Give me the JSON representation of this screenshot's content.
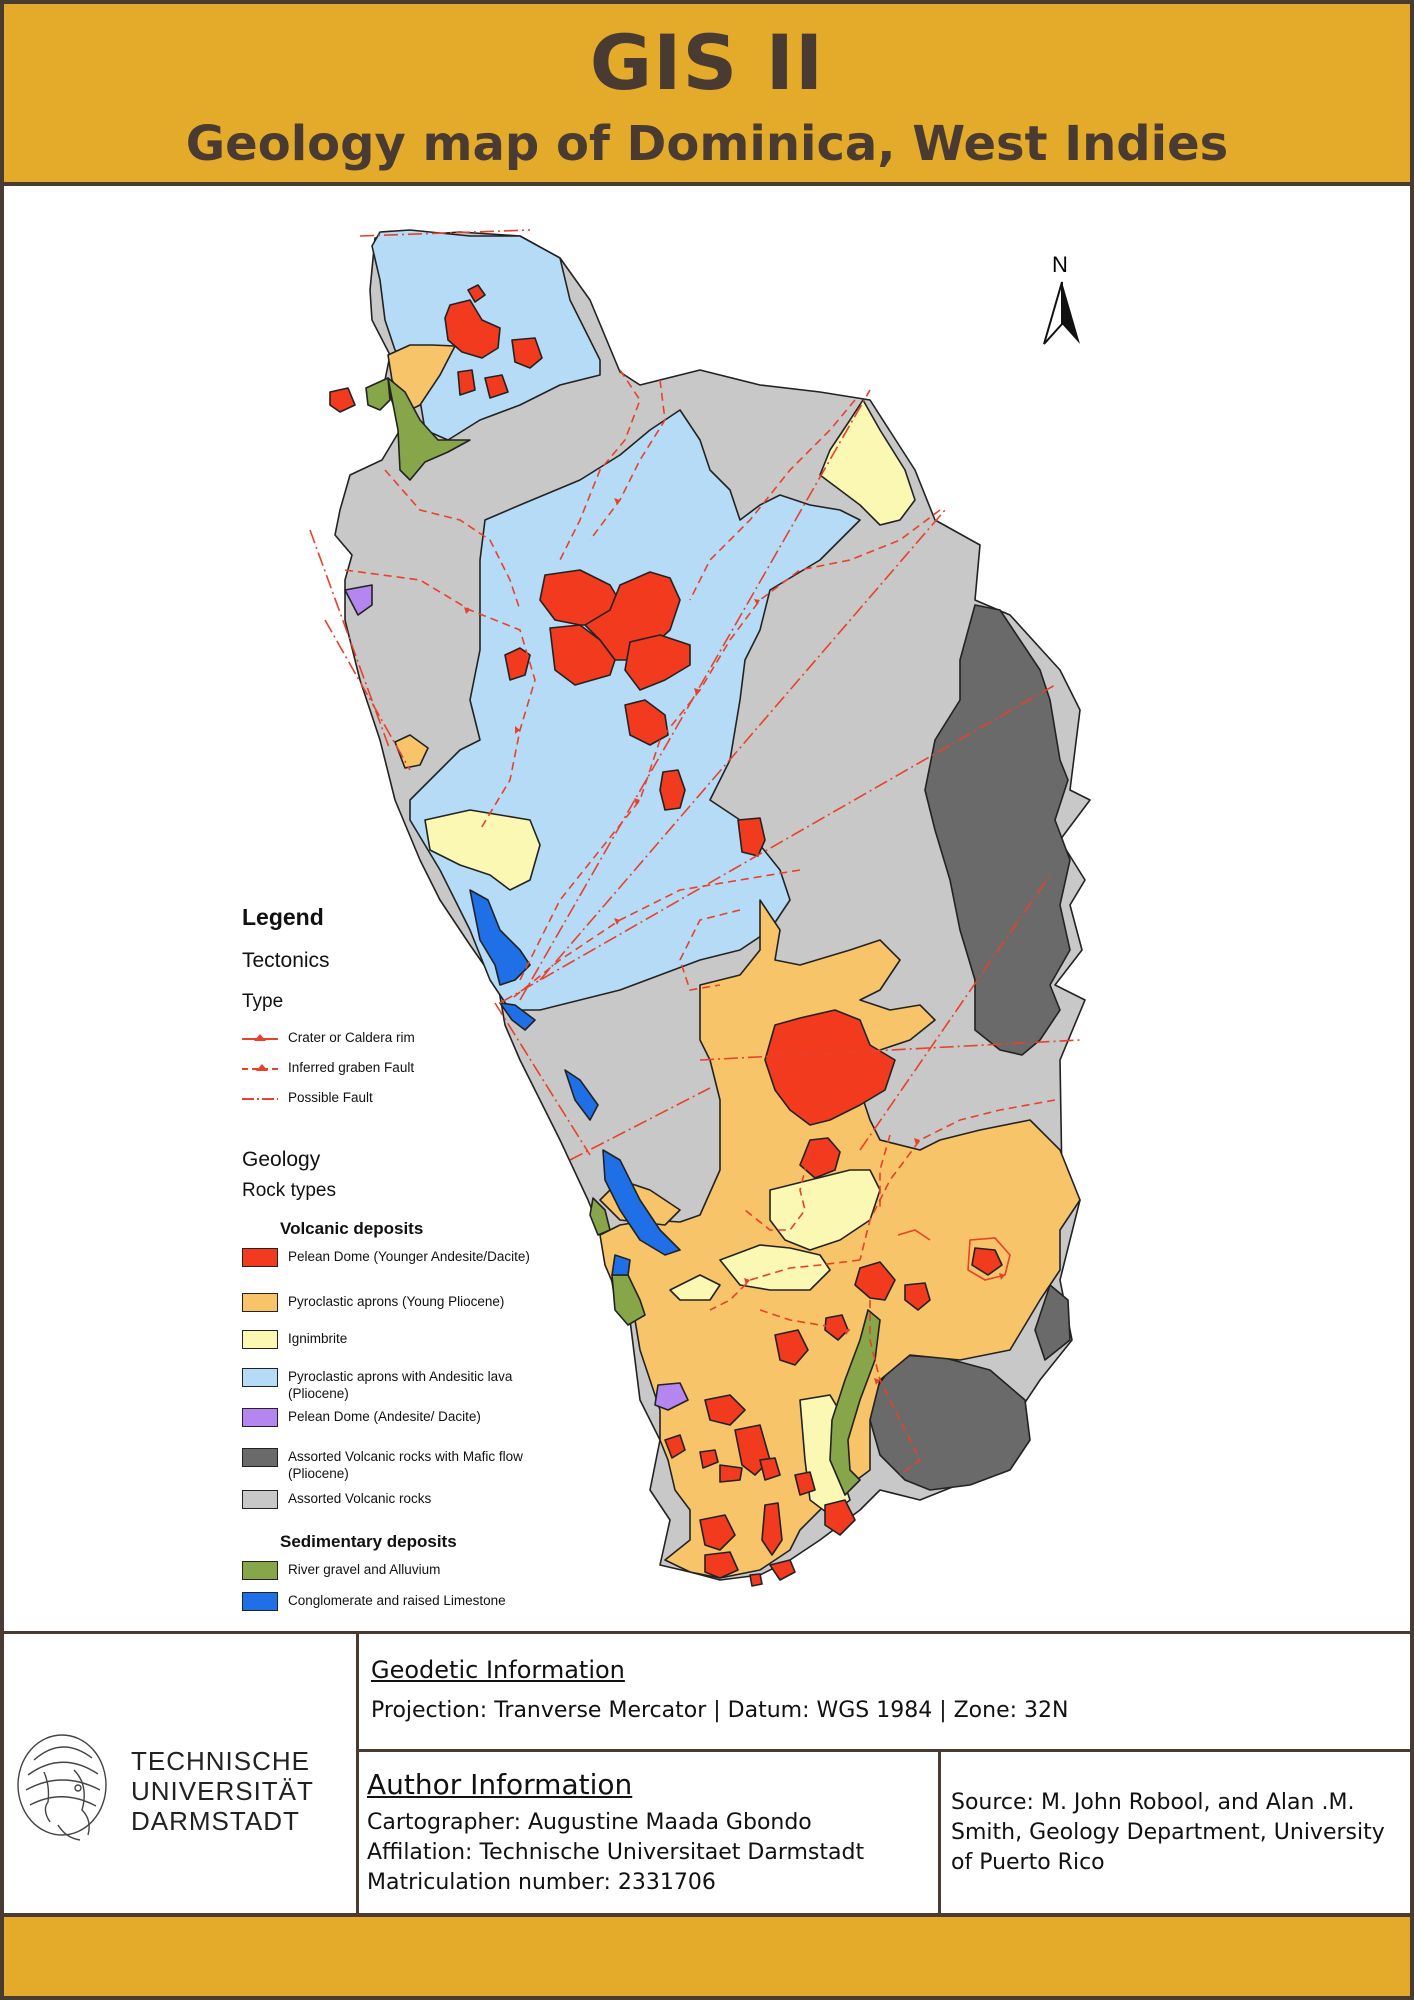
{
  "header": {
    "title": "GIS II",
    "subtitle": "Geology map of Dominica, West Indies"
  },
  "colors": {
    "header_bg": "#e4aa2a",
    "border": "#4a3b32",
    "pelean_dome_young": "#f23a1e",
    "pyroclastic_young": "#f8c46a",
    "ignimbrite": "#fbf8b4",
    "pyroclastic_andesitic": "#b6dbf7",
    "pelean_dome_andesite": "#b586f0",
    "assorted_mafic": "#6a6a6a",
    "assorted_volcanic": "#c8c8c8",
    "river_gravel": "#86a649",
    "conglomerate": "#1f6fe6",
    "fault": "#e8412a"
  },
  "north_arrow": {
    "label": "N"
  },
  "legend": {
    "title": "Legend",
    "tectonics_heading": "Tectonics",
    "type_heading": "Type",
    "fault_types": [
      {
        "label": "Crater or Caldera rim",
        "symbol": "solid-triangles"
      },
      {
        "label": "Inferred graben Fault",
        "symbol": "dashed-triangles"
      },
      {
        "label": "Possible Fault",
        "symbol": "dash-dot"
      }
    ],
    "geology_heading": "Geology",
    "rock_types_heading": "Rock types",
    "volcanic_heading": "Volcanic deposits",
    "volcanic_items": [
      {
        "label": "Pelean Dome (Younger Andesite/Dacite)",
        "color": "#f23a1e"
      },
      {
        "label": "Pyroclastic aprons (Young Pliocene)",
        "color": "#f8c46a"
      },
      {
        "label": "Ignimbrite",
        "color": "#fbf8b4"
      },
      {
        "label": "Pyroclastic aprons with Andesitic lava (Pliocene)",
        "color": "#b6dbf7"
      },
      {
        "label": "Pelean Dome (Andesite/ Dacite)",
        "color": "#b586f0"
      },
      {
        "label": "Assorted Volcanic rocks with Mafic flow (Pliocene)",
        "color": "#6a6a6a"
      },
      {
        "label": "Assorted Volcanic rocks",
        "color": "#c8c8c8"
      }
    ],
    "sedimentary_heading": "Sedimentary deposits",
    "sedimentary_items": [
      {
        "label": "River gravel and Alluvium",
        "color": "#86a649"
      },
      {
        "label": "Conglomerate and raised Limestone",
        "color": "#1f6fe6"
      }
    ]
  },
  "logo": {
    "line1": "TECHNISCHE",
    "line2": "UNIVERSITÄT",
    "line3": "DARMSTADT"
  },
  "geodetic": {
    "title": "Geodetic Information",
    "projection": "Projection: Tranverse Mercator | Datum: WGS 1984 | Zone: 32N"
  },
  "author": {
    "title": "Author Information",
    "cartographer": "Cartographer: Augustine Maada Gbondo",
    "affiliation": "Affilation: Technische Universitaet Darmstadt",
    "matriculation": "Matriculation number: 2331706"
  },
  "source": {
    "text": "Source: M. John Robool, and Alan .M. Smith, Geology Department, University of Puerto Rico"
  }
}
